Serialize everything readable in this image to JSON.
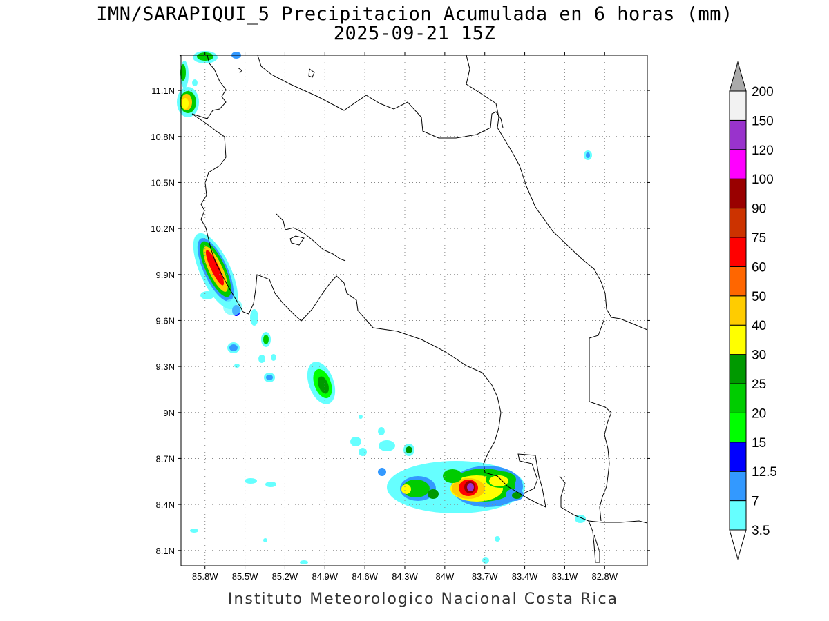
{
  "title_line1": "IMN/SARAPIQUI_5 Precipitacion Acumulada en 6 horas (mm)",
  "title_line2": "2025-09-21 15Z",
  "credit": "Instituto Meteorologico Nacional Costa Rica",
  "map": {
    "lon_range": [
      -85.98,
      -82.48
    ],
    "lat_range": [
      8.0,
      11.33
    ],
    "x_ticks": [
      {
        "value": -85.8,
        "label": "85.8W"
      },
      {
        "value": -85.5,
        "label": "85.5W"
      },
      {
        "value": -85.2,
        "label": "85.2W"
      },
      {
        "value": -84.9,
        "label": "84.9W"
      },
      {
        "value": -84.6,
        "label": "84.6W"
      },
      {
        "value": -84.3,
        "label": "84.3W"
      },
      {
        "value": -84.0,
        "label": "84W"
      },
      {
        "value": -83.7,
        "label": "83.7W"
      },
      {
        "value": -83.4,
        "label": "83.4W"
      },
      {
        "value": -83.1,
        "label": "83.1W"
      },
      {
        "value": -82.8,
        "label": "82.8W"
      }
    ],
    "y_ticks": [
      {
        "value": 8.1,
        "label": "8.1N"
      },
      {
        "value": 8.4,
        "label": "8.4N"
      },
      {
        "value": 8.7,
        "label": "8.7N"
      },
      {
        "value": 9.0,
        "label": "9N"
      },
      {
        "value": 9.3,
        "label": "9.3N"
      },
      {
        "value": 9.6,
        "label": "9.6N"
      },
      {
        "value": 9.9,
        "label": "9.9N"
      },
      {
        "value": 10.2,
        "label": "10.2N"
      },
      {
        "value": 10.5,
        "label": "10.5N"
      },
      {
        "value": 10.8,
        "label": "10.8N"
      },
      {
        "value": 11.1,
        "label": "11.1N"
      }
    ],
    "grid": "dotted"
  },
  "legend": {
    "levels": [
      {
        "label": "3.5",
        "color": "#66ffff"
      },
      {
        "label": "7",
        "color": "#3399ff"
      },
      {
        "label": "12.5",
        "color": "#0000ff"
      },
      {
        "label": "15",
        "color": "#00ff00"
      },
      {
        "label": "20",
        "color": "#00cc00"
      },
      {
        "label": "25",
        "color": "#009900"
      },
      {
        "label": "30",
        "color": "#ffff00"
      },
      {
        "label": "40",
        "color": "#ffcc00"
      },
      {
        "label": "50",
        "color": "#ff6600"
      },
      {
        "label": "60",
        "color": "#ff0000"
      },
      {
        "label": "75",
        "color": "#cc3300"
      },
      {
        "label": "90",
        "color": "#990000"
      },
      {
        "label": "100",
        "color": "#ff00ff"
      },
      {
        "label": "120",
        "color": "#9933cc"
      },
      {
        "label": "150",
        "color": "#f2f2f2"
      },
      {
        "label": "200",
        "color": "#aaaaaa"
      }
    ]
  }
}
